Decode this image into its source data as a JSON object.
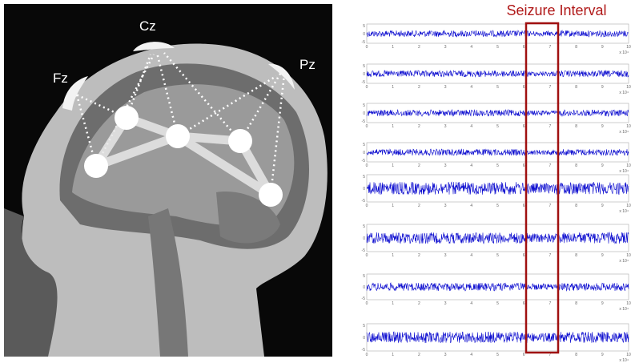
{
  "electrodes": {
    "fz": "Fz",
    "cz": "Cz",
    "pz": "Pz"
  },
  "seizure_label": "Seizure Interval",
  "eeg_axes": {
    "yticks": [
      "5",
      "0",
      "-5"
    ],
    "xticks": [
      "0",
      "1",
      "2",
      "3",
      "4",
      "5",
      "6",
      "7",
      "8",
      "9",
      "10"
    ],
    "x_scale": "x 10⁴"
  }
}
